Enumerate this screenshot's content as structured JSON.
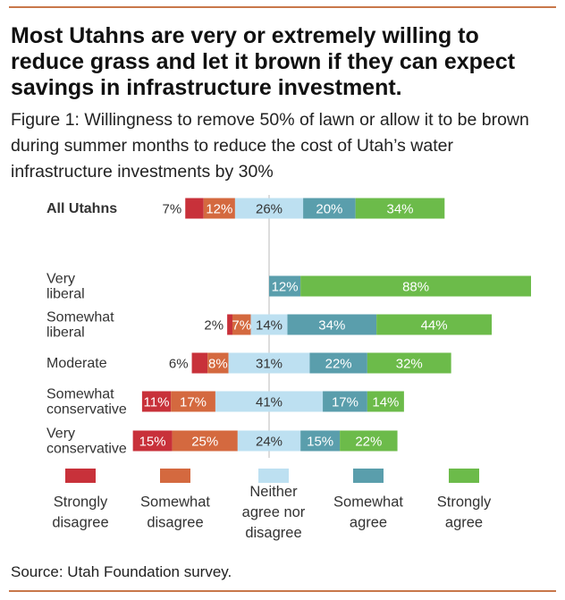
{
  "title": "Most Utahns are very or extremely willing to reduce grass and let it brown if they can expect savings in infrastructure investment.",
  "subtitle": "Figure 1: Willingness to remove 50% of lawn or allow it to be brown during summer months to reduce the cost of Utah’s water infrastructure investments by 30%",
  "source": "Source: Utah Foundation survey.",
  "chart_data": {
    "type": "bar",
    "orientation": "horizontal",
    "stacked": true,
    "diverging": true,
    "categories": [
      [
        "All Utahns"
      ],
      [
        "Very",
        "liberal"
      ],
      [
        "Somewhat",
        "liberal"
      ],
      [
        "Moderate"
      ],
      [
        "Somewhat",
        "conservative"
      ],
      [
        "Very",
        "conservative"
      ]
    ],
    "series": [
      {
        "name": [
          "Strongly",
          "disagree"
        ],
        "color": "#c8313a",
        "values": [
          7,
          0,
          2,
          6,
          11,
          15
        ]
      },
      {
        "name": [
          "Somewhat",
          "disagree"
        ],
        "color": "#d4693f",
        "values": [
          12,
          0,
          7,
          8,
          17,
          25
        ]
      },
      {
        "name": [
          "Neither",
          "agree nor",
          "disagree"
        ],
        "color": "#bde0f1",
        "values": [
          26,
          0,
          14,
          31,
          41,
          24
        ]
      },
      {
        "name": [
          "Somewhat",
          "agree"
        ],
        "color": "#5a9eac",
        "values": [
          20,
          12,
          34,
          22,
          17,
          15
        ]
      },
      {
        "name": [
          "Strongly",
          "agree"
        ],
        "color": "#6cbb4a",
        "values": [
          34,
          88,
          44,
          32,
          14,
          22
        ]
      }
    ],
    "unit": "%",
    "legend_position": "bottom"
  }
}
